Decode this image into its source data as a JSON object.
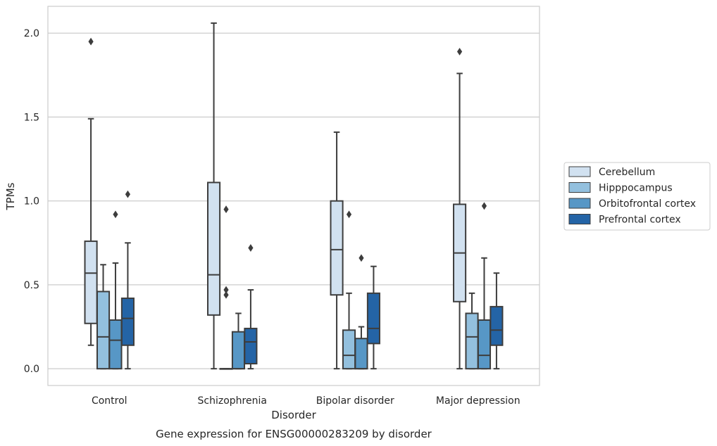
{
  "chart_data": {
    "type": "boxplot",
    "title": "",
    "caption": "Gene expression for ENSG00000283209 by disorder",
    "xlabel": "Disorder",
    "ylabel": "TPMs",
    "ylim": [
      -0.1,
      2.16
    ],
    "yticks": [
      0.0,
      0.5,
      1.0,
      1.5,
      2.0
    ],
    "ytick_labels": [
      "0.0",
      "0.5",
      "1.0",
      "1.5",
      "2.0"
    ],
    "grid": "horizontal",
    "legend_position": "right",
    "categories": [
      "Control",
      "Schizophrenia",
      "Bipolar disorder",
      "Major depression"
    ],
    "series": [
      {
        "name": "Cerebellum",
        "color": "#d1e1f0",
        "boxes": [
          {
            "whislo": 0.14,
            "q1": 0.27,
            "med": 0.57,
            "q3": 0.76,
            "whishi": 1.49,
            "fliers": [
              1.95
            ]
          },
          {
            "whislo": 0.0,
            "q1": 0.32,
            "med": 0.56,
            "q3": 1.11,
            "whishi": 2.06,
            "fliers": []
          },
          {
            "whislo": 0.0,
            "q1": 0.44,
            "med": 0.71,
            "q3": 1.0,
            "whishi": 1.41,
            "fliers": []
          },
          {
            "whislo": 0.0,
            "q1": 0.4,
            "med": 0.69,
            "q3": 0.98,
            "whishi": 1.76,
            "fliers": [
              1.89
            ]
          }
        ]
      },
      {
        "name": "Hipppocampus",
        "color": "#93c0de",
        "boxes": [
          {
            "whislo": 0.0,
            "q1": 0.0,
            "med": 0.19,
            "q3": 0.46,
            "whishi": 0.62,
            "fliers": []
          },
          {
            "whislo": 0.0,
            "q1": 0.0,
            "med": 0.0,
            "q3": 0.0,
            "whishi": 0.0,
            "fliers": [
              0.95,
              0.47,
              0.44
            ]
          },
          {
            "whislo": 0.0,
            "q1": 0.0,
            "med": 0.08,
            "q3": 0.23,
            "whishi": 0.45,
            "fliers": [
              0.92
            ]
          },
          {
            "whislo": 0.0,
            "q1": 0.0,
            "med": 0.19,
            "q3": 0.33,
            "whishi": 0.45,
            "fliers": []
          }
        ]
      },
      {
        "name": "Orbitofrontal cortex",
        "color": "#5797c6",
        "boxes": [
          {
            "whislo": 0.0,
            "q1": 0.0,
            "med": 0.17,
            "q3": 0.29,
            "whishi": 0.63,
            "fliers": [
              0.92
            ]
          },
          {
            "whislo": 0.0,
            "q1": 0.0,
            "med": 0.0,
            "q3": 0.22,
            "whishi": 0.33,
            "fliers": []
          },
          {
            "whislo": 0.0,
            "q1": 0.0,
            "med": 0.0,
            "q3": 0.18,
            "whishi": 0.25,
            "fliers": [
              0.66
            ]
          },
          {
            "whislo": 0.0,
            "q1": 0.0,
            "med": 0.08,
            "q3": 0.29,
            "whishi": 0.66,
            "fliers": [
              0.97
            ]
          }
        ]
      },
      {
        "name": "Prefrontal cortex",
        "color": "#2464a6",
        "boxes": [
          {
            "whislo": 0.0,
            "q1": 0.14,
            "med": 0.3,
            "q3": 0.42,
            "whishi": 0.75,
            "fliers": [
              1.04
            ]
          },
          {
            "whislo": 0.0,
            "q1": 0.03,
            "med": 0.16,
            "q3": 0.24,
            "whishi": 0.47,
            "fliers": [
              0.72
            ]
          },
          {
            "whislo": 0.0,
            "q1": 0.15,
            "med": 0.24,
            "q3": 0.45,
            "whishi": 0.61,
            "fliers": []
          },
          {
            "whislo": 0.0,
            "q1": 0.14,
            "med": 0.23,
            "q3": 0.37,
            "whishi": 0.57,
            "fliers": []
          }
        ]
      }
    ]
  }
}
